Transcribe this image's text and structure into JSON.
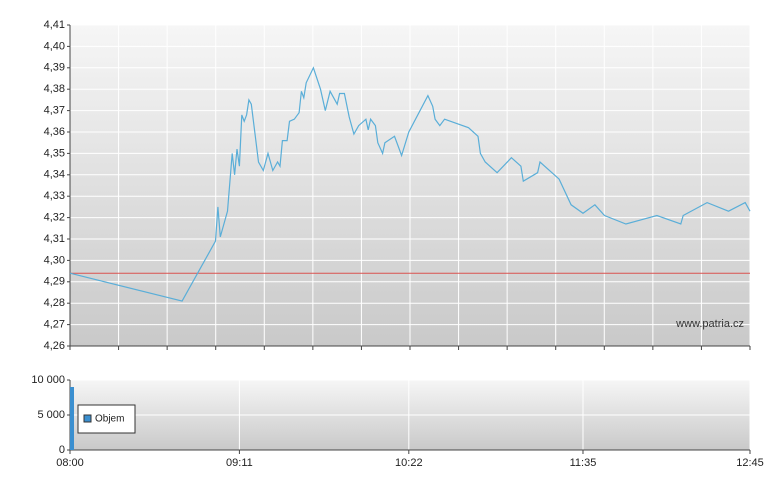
{
  "chart_data": [
    {
      "type": "line",
      "x": [
        "08:00",
        "08:47",
        "09:01",
        "09:02",
        "09:03",
        "09:06",
        "09:08",
        "09:09",
        "09:10",
        "09:11",
        "09:12",
        "09:13",
        "09:14",
        "09:15",
        "09:16",
        "09:17",
        "09:19",
        "09:21",
        "09:23",
        "09:25",
        "09:27",
        "09:28",
        "09:29",
        "09:31",
        "09:32",
        "09:34",
        "09:36",
        "09:37",
        "09:38",
        "09:39",
        "09:42",
        "09:45",
        "09:47",
        "09:49",
        "09:52",
        "09:53",
        "09:55",
        "09:57",
        "09:59",
        "10:01",
        "10:04",
        "10:05",
        "10:06",
        "10:08",
        "10:09",
        "10:11",
        "10:12",
        "10:16",
        "10:19",
        "10:22",
        "10:30",
        "10:32",
        "10:33",
        "10:35",
        "10:37",
        "10:47",
        "10:51",
        "10:52",
        "10:54",
        "10:59",
        "11:05",
        "11:09",
        "11:10",
        "11:16",
        "11:17",
        "11:25",
        "11:30",
        "11:35",
        "11:40",
        "11:44",
        "11:53",
        "12:06",
        "12:16",
        "12:17",
        "12:27",
        "12:36",
        "12:43",
        "12:45"
      ],
      "values": [
        4.294,
        4.281,
        4.309,
        4.325,
        4.311,
        4.323,
        4.35,
        4.34,
        4.352,
        4.344,
        4.368,
        4.365,
        4.368,
        4.375,
        4.373,
        4.364,
        4.346,
        4.342,
        4.35,
        4.342,
        4.346,
        4.344,
        4.356,
        4.356,
        4.365,
        4.366,
        4.369,
        4.379,
        4.376,
        4.383,
        4.39,
        4.38,
        4.37,
        4.379,
        4.373,
        4.378,
        4.378,
        4.367,
        4.359,
        4.363,
        4.366,
        4.361,
        4.366,
        4.363,
        4.355,
        4.35,
        4.355,
        4.358,
        4.349,
        4.36,
        4.377,
        4.372,
        4.366,
        4.363,
        4.366,
        4.362,
        4.358,
        4.35,
        4.346,
        4.341,
        4.348,
        4.344,
        4.337,
        4.341,
        4.346,
        4.338,
        4.326,
        4.322,
        4.326,
        4.321,
        4.317,
        4.321,
        4.317,
        4.321,
        4.327,
        4.323,
        4.327,
        4.323
      ],
      "color": "#5aaed8",
      "reference_value": 4.294,
      "reference_color": "#d9534f",
      "xlim": [
        "08:00",
        "12:45"
      ],
      "ylim": [
        4.26,
        4.41
      ],
      "yticks": [
        {
          "value": 4.26,
          "label": "4,26"
        },
        {
          "value": 4.27,
          "label": "4,27"
        },
        {
          "value": 4.28,
          "label": "4,28"
        },
        {
          "value": 4.29,
          "label": "4,29"
        },
        {
          "value": 4.3,
          "label": "4,30"
        },
        {
          "value": 4.31,
          "label": "4,31"
        },
        {
          "value": 4.32,
          "label": "4,32"
        },
        {
          "value": 4.33,
          "label": "4,33"
        },
        {
          "value": 4.34,
          "label": "4,34"
        },
        {
          "value": 4.35,
          "label": "4,35"
        },
        {
          "value": 4.36,
          "label": "4,36"
        },
        {
          "value": 4.37,
          "label": "4,37"
        },
        {
          "value": 4.38,
          "label": "4,38"
        },
        {
          "value": 4.39,
          "label": "4,39"
        },
        {
          "value": 4.4,
          "label": "4,40"
        },
        {
          "value": 4.41,
          "label": "4,41"
        }
      ],
      "watermark": "www.patria.cz",
      "grid": true
    },
    {
      "type": "bar",
      "x": [
        "08:00"
      ],
      "series": [
        {
          "name": "Objem",
          "color": "#3a8fd0",
          "values": [
            9000
          ]
        }
      ],
      "xlim": [
        "08:00",
        "12:45"
      ],
      "xticks": [
        "08:00",
        "09:11",
        "10:22",
        "11:35",
        "12:45"
      ],
      "ylim": [
        0,
        10000
      ],
      "yticks": [
        0,
        {
          "value": 5000,
          "label": "5 000"
        },
        {
          "value": 10000,
          "label": "10 000"
        }
      ],
      "grid": true
    }
  ]
}
